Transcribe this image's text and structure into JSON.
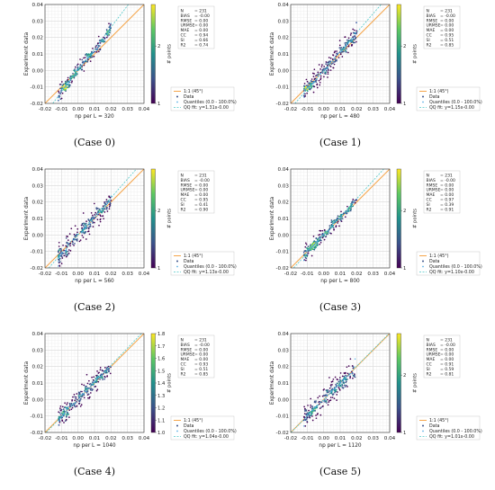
{
  "colors": {
    "one_to_one_line": "#f5a54a",
    "qq_fit_line": "#4fc9c9",
    "quantile_marker": "#43a6e0",
    "grid": "#d9d9d9",
    "colormap": [
      "#440154",
      "#3b528b",
      "#21918c",
      "#5ec962",
      "#fde725"
    ]
  },
  "panels": [
    {
      "caption": "(Case 0)",
      "stats": [
        [
          "N",
          "231"
        ],
        [
          "BIAS",
          "-0.00"
        ],
        [
          "RMSE",
          "0.00"
        ],
        [
          "URMSE",
          "0.00"
        ],
        [
          "MAE",
          "0.00"
        ],
        [
          "CC",
          "0.94"
        ],
        [
          "SI",
          "0.66"
        ],
        [
          "R2",
          "0.74"
        ]
      ],
      "legend": [
        "1:1 (45°)",
        "Data",
        "Quantiles (0.0 - 100.0%)",
        "QQ fit: y=1.31x-0.00"
      ],
      "colorbar": {
        "label": "# points",
        "ticks": [
          "1",
          "2"
        ]
      },
      "chart_data": {
        "type": "scatter",
        "xlabel": "np per L = 320",
        "ylabel": "Experiment data",
        "xlim": [
          -0.02,
          0.04
        ],
        "ylim": [
          -0.02,
          0.04
        ],
        "xticks": [
          "-0.02",
          "-0.01",
          "0.00",
          "0.01",
          "0.02",
          "0.03",
          "0.04"
        ],
        "yticks": [
          "-0.02",
          "-0.01",
          "0.00",
          "0.01",
          "0.02",
          "0.03",
          "0.04"
        ],
        "qq_fit": {
          "slope": 1.31,
          "intercept": 0.0
        },
        "n_points": 231
      }
    },
    {
      "caption": "(Case 1)",
      "stats": [
        [
          "N",
          "231"
        ],
        [
          "BIAS",
          "-0.00"
        ],
        [
          "RMSE",
          "0.00"
        ],
        [
          "URMSE",
          "0.00"
        ],
        [
          "MAE",
          "0.00"
        ],
        [
          "CC",
          "0.95"
        ],
        [
          "SI",
          "0.51"
        ],
        [
          "R2",
          "0.85"
        ]
      ],
      "legend": [
        "1:1 (45°)",
        "Data",
        "Quantiles (0.0 - 100.0%)",
        "QQ fit: y=1.15x-0.00"
      ],
      "colorbar": {
        "label": "# points",
        "ticks": [
          "1",
          "2"
        ]
      },
      "chart_data": {
        "type": "scatter",
        "xlabel": "np per L = 480",
        "ylabel": "Experiment data",
        "xlim": [
          -0.02,
          0.04
        ],
        "ylim": [
          -0.02,
          0.04
        ],
        "xticks": [
          "-0.02",
          "-0.01",
          "0.00",
          "0.01",
          "0.02",
          "0.03",
          "0.04"
        ],
        "yticks": [
          "-0.02",
          "-0.01",
          "0.00",
          "0.01",
          "0.02",
          "0.03",
          "0.04"
        ],
        "qq_fit": {
          "slope": 1.15,
          "intercept": 0.0
        },
        "n_points": 231
      }
    },
    {
      "caption": "(Case 2)",
      "stats": [
        [
          "N",
          "231"
        ],
        [
          "BIAS",
          "-0.00"
        ],
        [
          "RMSE",
          "0.00"
        ],
        [
          "URMSE",
          "0.00"
        ],
        [
          "MAE",
          "0.00"
        ],
        [
          "CC",
          "0.95"
        ],
        [
          "SI",
          "0.41"
        ],
        [
          "R2",
          "0.90"
        ]
      ],
      "legend": [
        "1:1 (45°)",
        "Data",
        "Quantiles (0.0 - 100.0%)",
        "QQ fit: y=1.13x-0.00"
      ],
      "colorbar": {
        "label": "# points",
        "ticks": [
          "1",
          "2"
        ]
      },
      "chart_data": {
        "type": "scatter",
        "xlabel": "np per L = 560",
        "ylabel": "Experiment data",
        "xlim": [
          -0.02,
          0.04
        ],
        "ylim": [
          -0.02,
          0.04
        ],
        "xticks": [
          "-0.02",
          "-0.01",
          "0.00",
          "0.01",
          "0.02",
          "0.03",
          "0.04"
        ],
        "yticks": [
          "-0.02",
          "-0.01",
          "0.00",
          "0.01",
          "0.02",
          "0.03",
          "0.04"
        ],
        "qq_fit": {
          "slope": 1.13,
          "intercept": 0.0
        },
        "n_points": 231
      }
    },
    {
      "caption": "(Case 3)",
      "stats": [
        [
          "N",
          "231"
        ],
        [
          "BIAS",
          "-0.00"
        ],
        [
          "RMSE",
          "0.00"
        ],
        [
          "URMSE",
          "0.00"
        ],
        [
          "MAE",
          "0.00"
        ],
        [
          "CC",
          "0.97"
        ],
        [
          "SI",
          "0.39"
        ],
        [
          "R2",
          "0.91"
        ]
      ],
      "legend": [
        "1:1 (45°)",
        "Data",
        "Quantiles (0.0 - 100.0%)",
        "QQ fit: y=1.10x-0.00"
      ],
      "colorbar": {
        "label": "# points",
        "ticks": [
          "1",
          "2"
        ]
      },
      "chart_data": {
        "type": "scatter",
        "xlabel": "np per L = 800",
        "ylabel": "Experiment data",
        "xlim": [
          -0.02,
          0.04
        ],
        "ylim": [
          -0.02,
          0.04
        ],
        "xticks": [
          "-0.02",
          "-0.01",
          "0.00",
          "0.01",
          "0.02",
          "0.03",
          "0.04"
        ],
        "yticks": [
          "-0.02",
          "-0.01",
          "0.00",
          "0.01",
          "0.02",
          "0.03",
          "0.04"
        ],
        "qq_fit": {
          "slope": 1.1,
          "intercept": 0.0
        },
        "n_points": 231
      }
    },
    {
      "caption": "(Case 4)",
      "stats": [
        [
          "N",
          "231"
        ],
        [
          "BIAS",
          "-0.00"
        ],
        [
          "RMSE",
          "0.00"
        ],
        [
          "URMSE",
          "0.00"
        ],
        [
          "MAE",
          "0.00"
        ],
        [
          "CC",
          "0.93"
        ],
        [
          "SI",
          "0.51"
        ],
        [
          "R2",
          "0.85"
        ]
      ],
      "legend": [
        "1:1 (45°)",
        "Data",
        "Quantiles (0.0 - 100.0%)",
        "QQ fit: y=1.04x-0.00"
      ],
      "colorbar": {
        "label": "# points",
        "ticks": [
          "1.0",
          "1.1",
          "1.2",
          "1.3",
          "1.4",
          "1.5",
          "1.6",
          "1.7",
          "1.8"
        ]
      },
      "chart_data": {
        "type": "scatter",
        "xlabel": "np per L = 1040",
        "ylabel": "Experiment data",
        "xlim": [
          -0.02,
          0.04
        ],
        "ylim": [
          -0.02,
          0.04
        ],
        "xticks": [
          "-0.02",
          "-0.01",
          "0.00",
          "0.01",
          "0.02",
          "0.03",
          "0.04"
        ],
        "yticks": [
          "-0.02",
          "-0.01",
          "0.00",
          "0.01",
          "0.02",
          "0.03",
          "0.04"
        ],
        "qq_fit": {
          "slope": 1.04,
          "intercept": 0.0
        },
        "n_points": 231
      }
    },
    {
      "caption": "(Case 5)",
      "stats": [
        [
          "N",
          "231"
        ],
        [
          "BIAS",
          "-0.00"
        ],
        [
          "RMSE",
          "0.00"
        ],
        [
          "URMSE",
          "0.00"
        ],
        [
          "MAE",
          "0.00"
        ],
        [
          "CC",
          "0.91"
        ],
        [
          "SI",
          "0.59"
        ],
        [
          "R2",
          "0.81"
        ]
      ],
      "legend": [
        "1:1 (45°)",
        "Data",
        "Quantiles (0.0 - 100.0%)",
        "QQ fit: y=1.01x-0.00"
      ],
      "colorbar": {
        "label": "# points",
        "ticks": [
          "1",
          "2"
        ]
      },
      "chart_data": {
        "type": "scatter",
        "xlabel": "np per L = 1120",
        "ylabel": "Experiment data",
        "xlim": [
          -0.02,
          0.04
        ],
        "ylim": [
          -0.02,
          0.04
        ],
        "xticks": [
          "-0.02",
          "-0.01",
          "0.00",
          "0.01",
          "0.02",
          "0.03",
          "0.04"
        ],
        "yticks": [
          "-0.02",
          "-0.01",
          "0.00",
          "0.01",
          "0.02",
          "0.03",
          "0.04"
        ],
        "qq_fit": {
          "slope": 1.01,
          "intercept": 0.0
        },
        "n_points": 231
      }
    }
  ]
}
